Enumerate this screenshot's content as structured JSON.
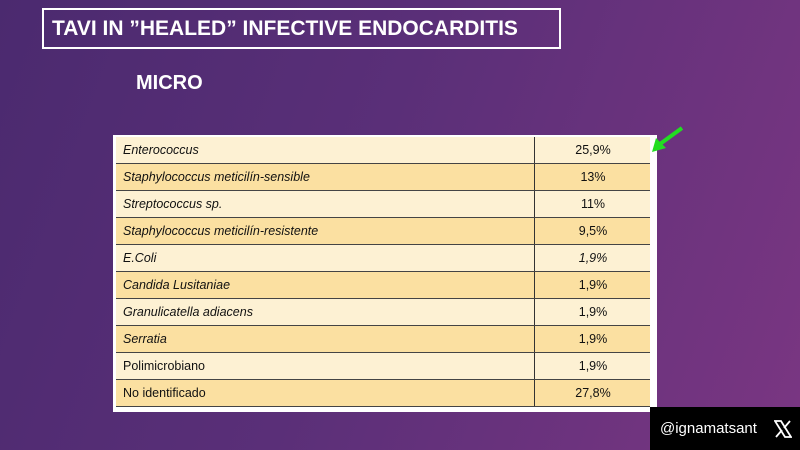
{
  "header": {
    "title": "TAVI IN ”HEALED” INFECTIVE ENDOCARDITIS",
    "subtitle": "MICRO"
  },
  "table": {
    "rows": [
      [
        "Enterococcus",
        "25,9%"
      ],
      [
        "Staphylococcus meticilín-sensible",
        "13%"
      ],
      [
        "Streptococcus sp.",
        "11%"
      ],
      [
        "Staphylococcus meticilín-resistente",
        "9,5%"
      ],
      [
        "E.Coli",
        "1,9%"
      ],
      [
        "Candida Lusitaniae",
        "1,9%"
      ],
      [
        "Granulicatella adiacens",
        "1,9%"
      ],
      [
        "Serratia",
        "1,9%"
      ],
      [
        "Polimicrobiano",
        "1,9%"
      ],
      [
        "No identificado",
        "27,8%"
      ]
    ]
  },
  "footer": {
    "handle": "@ignamatsant"
  }
}
